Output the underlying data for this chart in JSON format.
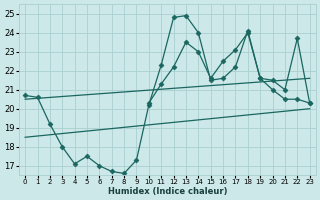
{
  "xlabel": "Humidex (Indice chaleur)",
  "xlim": [
    -0.5,
    23.5
  ],
  "ylim": [
    16.5,
    25.5
  ],
  "yticks": [
    17,
    18,
    19,
    20,
    21,
    22,
    23,
    24,
    25
  ],
  "xticks": [
    0,
    1,
    2,
    3,
    4,
    5,
    6,
    7,
    8,
    9,
    10,
    11,
    12,
    13,
    14,
    15,
    16,
    17,
    18,
    19,
    20,
    21,
    22,
    23
  ],
  "bg_color": "#cce8e8",
  "grid_color": "#aad0d0",
  "line_color": "#1a6660",
  "lines": [
    {
      "x": [
        0,
        1,
        2,
        3,
        4,
        5,
        6,
        7,
        8,
        9,
        10,
        11,
        12,
        13,
        14,
        15,
        16,
        17,
        18,
        19,
        20,
        21,
        22,
        23
      ],
      "y": [
        20.7,
        20.6,
        19.2,
        18.0,
        17.1,
        17.5,
        17.0,
        16.7,
        16.6,
        17.3,
        20.2,
        22.3,
        24.8,
        24.9,
        24.0,
        21.5,
        21.6,
        22.2,
        24.1,
        21.6,
        21.0,
        20.5,
        20.5,
        20.3
      ],
      "marker": "D",
      "markersize": 2.5,
      "linewidth": 0.9
    },
    {
      "x": [
        10,
        11,
        12,
        13,
        14,
        15,
        16,
        17,
        18,
        19,
        20,
        21,
        22,
        23
      ],
      "y": [
        20.3,
        21.3,
        22.2,
        23.5,
        23.0,
        21.6,
        22.5,
        23.1,
        24.0,
        21.6,
        21.5,
        21.0,
        23.7,
        20.3
      ],
      "marker": "D",
      "markersize": 2.5,
      "linewidth": 0.9
    },
    {
      "x": [
        0,
        23
      ],
      "y": [
        18.5,
        20.0
      ],
      "marker": null,
      "markersize": 0,
      "linewidth": 0.9
    },
    {
      "x": [
        0,
        23
      ],
      "y": [
        20.5,
        21.6
      ],
      "marker": null,
      "markersize": 0,
      "linewidth": 0.9
    }
  ]
}
